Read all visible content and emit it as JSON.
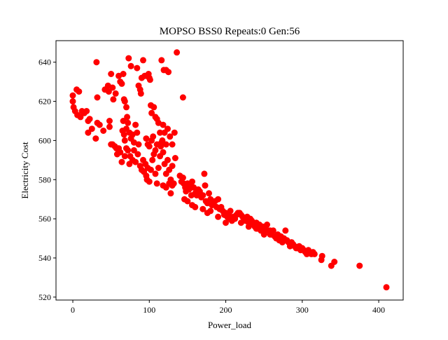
{
  "chart_data": {
    "type": "scatter",
    "title": "MOPSO BSS0 Repeats:0 Gen:56",
    "xlabel": "Power_load",
    "ylabel": "Electricity Cost",
    "xlim": [
      -22,
      432
    ],
    "ylim": [
      518.5,
      651
    ],
    "xticks": [
      0,
      100,
      200,
      300,
      400
    ],
    "yticks": [
      520,
      540,
      560,
      580,
      600,
      620,
      640
    ],
    "grid": false,
    "marker_color": "#ff0000",
    "points": [
      [
        0,
        623
      ],
      [
        0,
        620
      ],
      [
        1,
        617
      ],
      [
        3,
        615
      ],
      [
        5,
        626
      ],
      [
        8,
        625
      ],
      [
        6,
        613
      ],
      [
        10,
        612
      ],
      [
        12,
        615
      ],
      [
        15,
        614
      ],
      [
        18,
        615
      ],
      [
        20,
        610
      ],
      [
        22,
        611
      ],
      [
        20,
        604
      ],
      [
        25,
        606
      ],
      [
        30,
        601
      ],
      [
        32,
        609
      ],
      [
        35,
        608
      ],
      [
        40,
        605
      ],
      [
        31,
        640
      ],
      [
        32,
        622
      ],
      [
        42,
        626
      ],
      [
        46,
        628
      ],
      [
        47,
        625
      ],
      [
        50,
        634
      ],
      [
        52,
        627
      ],
      [
        53,
        621
      ],
      [
        56,
        624
      ],
      [
        60,
        633
      ],
      [
        62,
        630
      ],
      [
        64,
        629
      ],
      [
        66,
        634
      ],
      [
        67,
        621
      ],
      [
        68,
        620
      ],
      [
        70,
        617
      ],
      [
        48,
        610
      ],
      [
        48,
        607
      ],
      [
        50,
        598
      ],
      [
        52,
        598
      ],
      [
        55,
        597
      ],
      [
        57,
        596
      ],
      [
        58,
        593
      ],
      [
        60,
        596
      ],
      [
        62,
        594
      ],
      [
        65,
        605
      ],
      [
        66,
        610
      ],
      [
        67,
        603
      ],
      [
        68,
        600
      ],
      [
        70,
        606
      ],
      [
        71,
        612
      ],
      [
        72,
        609
      ],
      [
        74,
        604
      ],
      [
        76,
        601
      ],
      [
        78,
        603
      ],
      [
        80,
        599
      ],
      [
        82,
        608
      ],
      [
        84,
        604
      ],
      [
        73,
        642
      ],
      [
        76,
        638
      ],
      [
        84,
        637
      ],
      [
        86,
        628
      ],
      [
        88,
        626
      ],
      [
        89,
        624
      ],
      [
        90,
        632
      ],
      [
        92,
        641
      ],
      [
        94,
        633
      ],
      [
        97,
        633
      ],
      [
        99,
        634
      ],
      [
        100,
        632
      ],
      [
        101,
        631
      ],
      [
        102,
        618
      ],
      [
        103,
        614
      ],
      [
        106,
        617
      ],
      [
        108,
        612
      ],
      [
        110,
        611
      ],
      [
        116,
        641
      ],
      [
        119,
        636
      ],
      [
        122,
        636
      ],
      [
        125,
        635
      ],
      [
        136,
        645
      ],
      [
        144,
        622
      ],
      [
        64,
        589
      ],
      [
        68,
        592
      ],
      [
        70,
        596
      ],
      [
        72,
        595
      ],
      [
        74,
        588
      ],
      [
        75,
        592
      ],
      [
        78,
        590
      ],
      [
        80,
        595
      ],
      [
        82,
        589
      ],
      [
        85,
        593
      ],
      [
        86,
        598
      ],
      [
        88,
        587
      ],
      [
        90,
        585
      ],
      [
        92,
        590
      ],
      [
        93,
        584
      ],
      [
        95,
        588
      ],
      [
        96,
        582
      ],
      [
        97,
        580
      ],
      [
        98,
        586
      ],
      [
        100,
        579
      ],
      [
        102,
        585
      ],
      [
        104,
        590
      ],
      [
        106,
        593
      ],
      [
        108,
        583
      ],
      [
        110,
        578
      ],
      [
        112,
        586
      ],
      [
        114,
        592
      ],
      [
        115,
        597
      ],
      [
        116,
        599
      ],
      [
        118,
        594
      ],
      [
        120,
        588
      ],
      [
        122,
        583
      ],
      [
        124,
        590
      ],
      [
        126,
        585
      ],
      [
        128,
        580
      ],
      [
        130,
        587
      ],
      [
        132,
        578
      ],
      [
        134,
        591
      ],
      [
        96,
        601
      ],
      [
        98,
        598
      ],
      [
        100,
        597
      ],
      [
        103,
        600
      ],
      [
        105,
        602
      ],
      [
        108,
        595
      ],
      [
        110,
        598
      ],
      [
        112,
        609
      ],
      [
        114,
        604
      ],
      [
        117,
        600
      ],
      [
        118,
        608
      ],
      [
        120,
        604
      ],
      [
        122,
        598
      ],
      [
        124,
        606
      ],
      [
        127,
        602
      ],
      [
        130,
        598
      ],
      [
        133,
        604
      ],
      [
        118,
        577
      ],
      [
        122,
        576
      ],
      [
        126,
        578
      ],
      [
        128,
        573
      ],
      [
        130,
        577
      ],
      [
        140,
        582
      ],
      [
        142,
        579
      ],
      [
        144,
        581
      ],
      [
        145,
        578
      ],
      [
        147,
        576
      ],
      [
        148,
        574
      ],
      [
        150,
        578
      ],
      [
        152,
        575
      ],
      [
        154,
        577
      ],
      [
        155,
        572
      ],
      [
        156,
        579
      ],
      [
        158,
        576
      ],
      [
        160,
        573
      ],
      [
        162,
        572
      ],
      [
        164,
        575
      ],
      [
        166,
        574
      ],
      [
        168,
        571
      ],
      [
        170,
        572
      ],
      [
        172,
        583
      ],
      [
        173,
        577
      ],
      [
        174,
        569
      ],
      [
        176,
        568
      ],
      [
        178,
        573
      ],
      [
        180,
        570
      ],
      [
        182,
        567
      ],
      [
        184,
        568
      ],
      [
        186,
        569
      ],
      [
        188,
        566
      ],
      [
        190,
        570
      ],
      [
        192,
        565
      ],
      [
        194,
        566
      ],
      [
        196,
        564
      ],
      [
        198,
        562
      ],
      [
        200,
        563
      ],
      [
        202,
        561
      ],
      [
        204,
        562
      ],
      [
        205,
        560
      ],
      [
        206,
        564
      ],
      [
        208,
        559
      ],
      [
        210,
        561
      ],
      [
        212,
        560
      ],
      [
        214,
        562
      ],
      [
        216,
        563
      ],
      [
        218,
        563
      ],
      [
        220,
        562
      ],
      [
        222,
        561
      ],
      [
        224,
        560
      ],
      [
        226,
        559
      ],
      [
        228,
        561
      ],
      [
        230,
        558
      ],
      [
        232,
        560
      ],
      [
        234,
        559
      ],
      [
        236,
        557
      ],
      [
        238,
        556
      ],
      [
        240,
        558
      ],
      [
        242,
        555
      ],
      [
        244,
        557
      ],
      [
        246,
        554
      ],
      [
        248,
        556
      ],
      [
        250,
        553
      ],
      [
        252,
        555
      ],
      [
        254,
        557
      ],
      [
        256,
        554
      ],
      [
        258,
        554
      ],
      [
        260,
        552
      ],
      [
        262,
        554
      ],
      [
        264,
        551
      ],
      [
        266,
        550
      ],
      [
        268,
        552
      ],
      [
        270,
        549
      ],
      [
        272,
        551
      ],
      [
        274,
        548
      ],
      [
        276,
        550
      ],
      [
        278,
        554
      ],
      [
        280,
        549
      ],
      [
        282,
        548
      ],
      [
        284,
        546
      ],
      [
        286,
        548
      ],
      [
        288,
        547
      ],
      [
        290,
        546
      ],
      [
        292,
        545
      ],
      [
        294,
        545
      ],
      [
        296,
        546
      ],
      [
        298,
        544
      ],
      [
        300,
        545
      ],
      [
        302,
        544
      ],
      [
        304,
        543
      ],
      [
        306,
        542
      ],
      [
        308,
        544
      ],
      [
        310,
        543
      ],
      [
        312,
        542
      ],
      [
        314,
        543
      ],
      [
        316,
        542
      ],
      [
        146,
        570
      ],
      [
        150,
        569
      ],
      [
        156,
        567
      ],
      [
        160,
        566
      ],
      [
        170,
        565
      ],
      [
        176,
        563
      ],
      [
        180,
        564
      ],
      [
        190,
        561
      ],
      [
        200,
        558
      ],
      [
        210,
        560
      ],
      [
        220,
        558
      ],
      [
        230,
        556
      ],
      [
        240,
        555
      ],
      [
        250,
        552
      ],
      [
        258,
        552
      ],
      [
        325,
        539
      ],
      [
        326,
        541
      ],
      [
        338,
        536
      ],
      [
        342,
        538
      ],
      [
        375,
        536
      ],
      [
        410,
        525
      ]
    ]
  }
}
